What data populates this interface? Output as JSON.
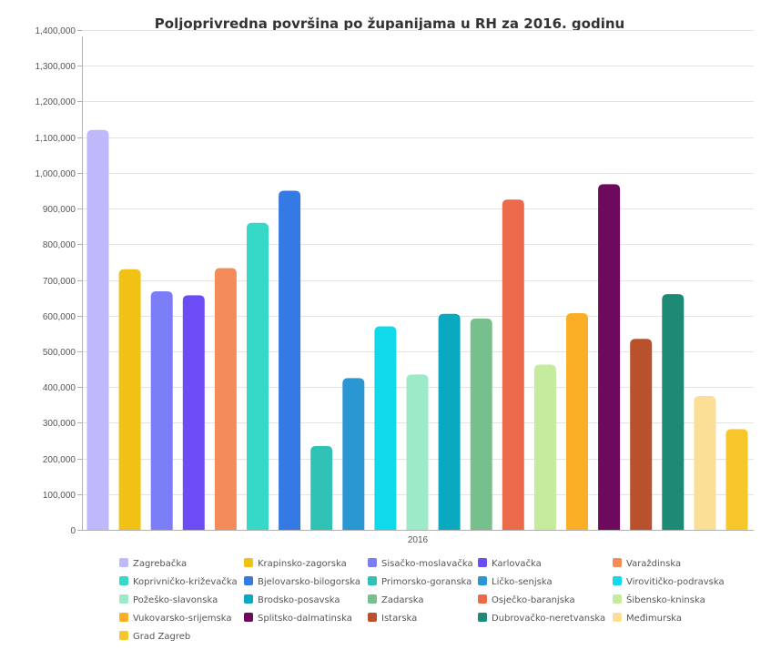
{
  "chart_data": {
    "type": "bar",
    "title": "Poljoprivredna površina po županijama u RH za 2016. godinu",
    "xlabel": "",
    "ylabel": "",
    "categories": [
      "2016"
    ],
    "ylim": [
      0,
      1400000
    ],
    "yticks": [
      0,
      100000,
      200000,
      300000,
      400000,
      500000,
      600000,
      700000,
      800000,
      900000,
      1000000,
      1100000,
      1200000,
      1300000,
      1400000
    ],
    "ytick_labels": [
      "0",
      "100,000",
      "200,000",
      "300,000",
      "400,000",
      "500,000",
      "600,000",
      "700,000",
      "800,000",
      "900,000",
      "1,000,000",
      "1,100,000",
      "1,200,000",
      "1,300,000",
      "1,400,000"
    ],
    "grid": true,
    "legend_position": "bottom",
    "series": [
      {
        "name": "Zagrebačka",
        "values": [
          1120000
        ],
        "color": "#bdb9fa"
      },
      {
        "name": "Krapinsko-zagorska",
        "values": [
          730000
        ],
        "color": "#f2c116"
      },
      {
        "name": "Sisačko-moslavačka",
        "values": [
          668000
        ],
        "color": "#7b7ef6"
      },
      {
        "name": "Karlovačka",
        "values": [
          657000
        ],
        "color": "#6c4df5"
      },
      {
        "name": "Varaždinska",
        "values": [
          733000
        ],
        "color": "#f48c5a"
      },
      {
        "name": "Koprivničko-križevačka",
        "values": [
          860000
        ],
        "color": "#36d9c8"
      },
      {
        "name": "Bjelovarsko-bilogorska",
        "values": [
          950000
        ],
        "color": "#3479e4"
      },
      {
        "name": "Primorsko-goranska",
        "values": [
          235000
        ],
        "color": "#30c2b4"
      },
      {
        "name": "Ličko-senjska",
        "values": [
          425000
        ],
        "color": "#2a97d2"
      },
      {
        "name": "Virovitičko-podravska",
        "values": [
          570000
        ],
        "color": "#10d9e9"
      },
      {
        "name": "Požeško-slavonska",
        "values": [
          435000
        ],
        "color": "#9ceac8"
      },
      {
        "name": "Brodsko-posavska",
        "values": [
          605000
        ],
        "color": "#0aa9bf"
      },
      {
        "name": "Zadarska",
        "values": [
          592000
        ],
        "color": "#77c08e"
      },
      {
        "name": "Osječko-baranjska",
        "values": [
          925000
        ],
        "color": "#ea6a49"
      },
      {
        "name": "Šibensko-kninska",
        "values": [
          463000
        ],
        "color": "#c5ec9e"
      },
      {
        "name": "Vukovarsko-srijemska",
        "values": [
          607000
        ],
        "color": "#fbaf27"
      },
      {
        "name": "Splitsko-dalmatinska",
        "values": [
          968000
        ],
        "color": "#6e0a5e"
      },
      {
        "name": "Istarska",
        "values": [
          535000
        ],
        "color": "#b9512d"
      },
      {
        "name": "Dubrovačko-neretvanska",
        "values": [
          660000
        ],
        "color": "#1c8a75"
      },
      {
        "name": "Međimurska",
        "values": [
          375000
        ],
        "color": "#fbdf96"
      },
      {
        "name": "Grad Zagreb",
        "values": [
          282000
        ],
        "color": "#f6c62a"
      }
    ]
  }
}
